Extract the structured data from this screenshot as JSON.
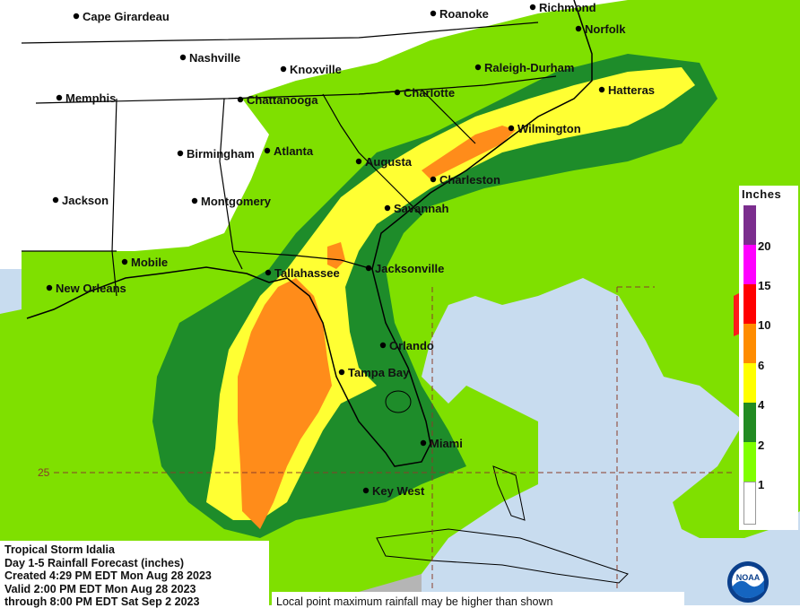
{
  "map": {
    "cities": [
      {
        "name": "Cape Girardeau"
      },
      {
        "name": "Roanoke"
      },
      {
        "name": "Richmond"
      },
      {
        "name": "Norfolk"
      },
      {
        "name": "Nashville"
      },
      {
        "name": "Knoxville"
      },
      {
        "name": "Raleigh-Durham"
      },
      {
        "name": "Memphis"
      },
      {
        "name": "Chattanooga"
      },
      {
        "name": "Charlotte"
      },
      {
        "name": "Hatteras"
      },
      {
        "name": "Birmingham"
      },
      {
        "name": "Atlanta"
      },
      {
        "name": "Wilmington"
      },
      {
        "name": "Augusta"
      },
      {
        "name": "Charleston"
      },
      {
        "name": "Jackson"
      },
      {
        "name": "Montgomery"
      },
      {
        "name": "Savannah"
      },
      {
        "name": "Mobile"
      },
      {
        "name": "Tallahassee"
      },
      {
        "name": "Jacksonville"
      },
      {
        "name": "New Orleans"
      },
      {
        "name": "Orlando"
      },
      {
        "name": "Tampa Bay"
      },
      {
        "name": "Miami"
      },
      {
        "name": "Key West"
      }
    ],
    "latitude_label": "25"
  },
  "legend": {
    "title": "Inches",
    "levels": [
      "20",
      "15",
      "10",
      "6",
      "4",
      "2",
      "1"
    ],
    "colors": {
      "gt20": "#7b2d8e",
      "15_20": "#ff00ff",
      "10_15": "#ff0000",
      "6_10": "#ff8c00",
      "4_6": "#ffff00",
      "2_4": "#228b22",
      "1_2": "#7fff00",
      "lt1": "#ffffff"
    }
  },
  "info": {
    "storm": "Tropical Storm Idalia",
    "product": "Day 1-5 Rainfall Forecast (inches)",
    "created": "Created 4:29 PM EDT Mon Aug 28 2023",
    "valid": "Valid 2:00 PM EDT Mon Aug 28 2023",
    "through": "through 8:00 PM EDT Sat Sep 2 2023"
  },
  "note": "Local point maximum rainfall may be higher than shown",
  "logo": {
    "text": "NOAA"
  },
  "colors": {
    "ocean": "#c8dcef",
    "land": "#ffffff",
    "light_green": "#7fe000",
    "dark_green": "#1e8c2a",
    "yellow": "#ffff33",
    "orange": "#ff8c1a",
    "red": "#ff1a1a",
    "grey": "#b5b5b5",
    "border": "#000000"
  }
}
